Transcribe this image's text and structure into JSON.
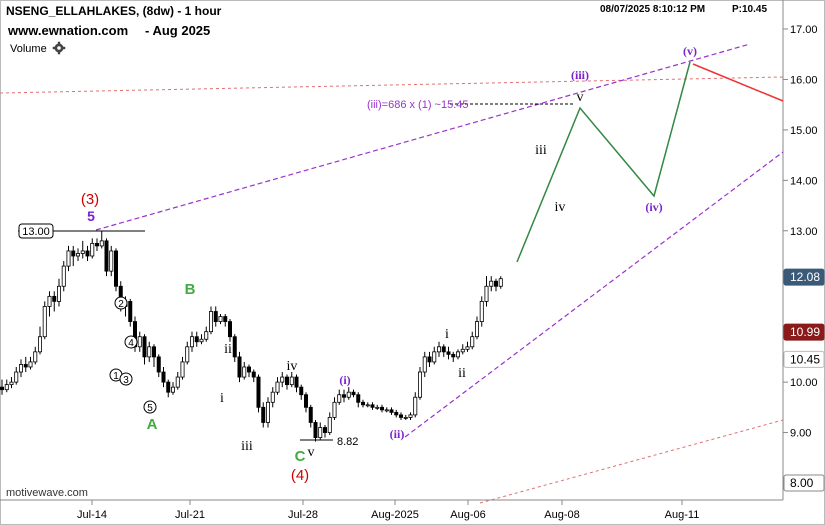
{
  "header": {
    "title": "NSENG_ELLAHLAKES, (8dw) - 1 hour",
    "website": "www.ewnation.com",
    "website_date": "- Aug 2025",
    "volume_label": "Volume",
    "gear_icon": "gear-icon",
    "timestamp": "08/07/2025 8:10:12 PM",
    "price_status": "P:10.45"
  },
  "watermark": "motivewave.com",
  "colors": {
    "candle": "#000000",
    "purple": "#9933cc",
    "red_label": "#d00000",
    "green_label": "#44aa44",
    "projection": "#338844",
    "red_line": "#ee3333",
    "dotted_red": "#e07070",
    "price_tag_blue": "#3a5a78",
    "price_tag_red": "#8b1a1a"
  },
  "chart_data": {
    "type": "candlestick",
    "x_tick_labels": [
      "Jul-14",
      "Jul-21",
      "Jul-28",
      "Aug-2025",
      "Aug-06",
      "Aug-08",
      "Aug-11"
    ],
    "y_ticks": [
      8.0,
      9.0,
      10.0,
      11.0,
      12.0,
      13.0,
      14.0,
      15.0,
      16.0,
      17.0
    ],
    "y_range": [
      7.9,
      17.5
    ],
    "price_tags": [
      {
        "value": 12.08,
        "label": "12.08",
        "style": "blue"
      },
      {
        "value": 10.99,
        "label": "10.99",
        "style": "red"
      },
      {
        "value": 10.45,
        "label": "10.45",
        "style": "plain"
      },
      {
        "value": 8.0,
        "label": "8.00",
        "style": "box"
      }
    ],
    "candles": [
      [
        9.9,
        9.85,
        10.05,
        9.75
      ],
      [
        9.85,
        9.95,
        10.05,
        9.8
      ],
      [
        9.95,
        10.0,
        10.1,
        9.88
      ],
      [
        10.0,
        10.2,
        10.3,
        9.95
      ],
      [
        10.2,
        10.35,
        10.45,
        10.1
      ],
      [
        10.35,
        10.3,
        10.5,
        10.2
      ],
      [
        10.3,
        10.4,
        10.5,
        10.25
      ],
      [
        10.4,
        10.6,
        10.7,
        10.35
      ],
      [
        10.6,
        10.9,
        11.1,
        10.55
      ],
      [
        10.9,
        11.5,
        11.6,
        10.85
      ],
      [
        11.5,
        11.7,
        11.8,
        11.3
      ],
      [
        11.7,
        11.6,
        11.8,
        11.4
      ],
      [
        11.6,
        11.9,
        12.05,
        11.5
      ],
      [
        11.9,
        12.3,
        12.4,
        11.8
      ],
      [
        12.3,
        12.6,
        12.7,
        12.2
      ],
      [
        12.6,
        12.5,
        12.7,
        12.3
      ],
      [
        12.5,
        12.55,
        12.65,
        12.4
      ],
      [
        12.55,
        12.6,
        12.8,
        12.45
      ],
      [
        12.6,
        12.5,
        12.7,
        12.4
      ],
      [
        12.5,
        12.75,
        12.85,
        12.45
      ],
      [
        12.75,
        12.7,
        12.85,
        12.6
      ],
      [
        12.7,
        12.8,
        13.0,
        12.65
      ],
      [
        12.8,
        12.2,
        12.85,
        12.1
      ],
      [
        12.2,
        12.6,
        12.7,
        12.1
      ],
      [
        12.6,
        11.9,
        12.65,
        11.8
      ],
      [
        11.9,
        11.5,
        12.0,
        11.4
      ],
      [
        11.5,
        11.6,
        11.7,
        11.3
      ],
      [
        11.6,
        11.2,
        11.65,
        11.1
      ],
      [
        11.2,
        10.7,
        11.3,
        10.6
      ],
      [
        10.7,
        10.9,
        11.0,
        10.6
      ],
      [
        10.9,
        10.5,
        10.95,
        10.35
      ],
      [
        10.5,
        10.7,
        10.8,
        10.4
      ],
      [
        10.7,
        10.5,
        10.75,
        10.3
      ],
      [
        10.5,
        10.2,
        10.55,
        10.1
      ],
      [
        10.2,
        10.0,
        10.3,
        9.9
      ],
      [
        10.0,
        9.8,
        10.05,
        9.7
      ],
      [
        9.8,
        9.9,
        10.0,
        9.75
      ],
      [
        9.9,
        10.1,
        10.2,
        9.85
      ],
      [
        10.1,
        10.4,
        10.5,
        10.05
      ],
      [
        10.4,
        10.7,
        10.8,
        10.35
      ],
      [
        10.7,
        10.9,
        11.0,
        10.6
      ],
      [
        10.9,
        10.8,
        11.0,
        10.7
      ],
      [
        10.8,
        10.85,
        10.95,
        10.75
      ],
      [
        10.85,
        11.0,
        11.1,
        10.8
      ],
      [
        11.0,
        11.4,
        11.5,
        10.95
      ],
      [
        11.4,
        11.2,
        11.5,
        11.1
      ],
      [
        11.2,
        11.3,
        11.35,
        11.15
      ],
      [
        11.3,
        11.2,
        11.35,
        11.1
      ],
      [
        11.2,
        10.9,
        11.25,
        10.8
      ],
      [
        10.9,
        10.5,
        10.95,
        10.4
      ],
      [
        10.5,
        10.1,
        10.6,
        10.0
      ],
      [
        10.1,
        10.3,
        10.4,
        10.05
      ],
      [
        10.3,
        10.2,
        10.35,
        10.1
      ],
      [
        10.2,
        10.1,
        10.25,
        10.0
      ],
      [
        10.1,
        9.5,
        10.15,
        9.4
      ],
      [
        9.5,
        9.2,
        9.6,
        9.1
      ],
      [
        9.2,
        9.6,
        9.7,
        9.1
      ],
      [
        9.6,
        9.8,
        9.9,
        9.5
      ],
      [
        9.8,
        10.0,
        10.1,
        9.75
      ],
      [
        10.0,
        10.1,
        10.2,
        9.9
      ],
      [
        10.1,
        9.95,
        10.15,
        9.85
      ],
      [
        9.95,
        10.1,
        10.2,
        9.9
      ],
      [
        10.1,
        9.9,
        10.15,
        9.8
      ],
      [
        9.9,
        9.75,
        9.95,
        9.65
      ],
      [
        9.75,
        9.5,
        9.8,
        9.4
      ],
      [
        9.5,
        9.2,
        9.55,
        9.1
      ],
      [
        9.2,
        8.9,
        9.25,
        8.82
      ],
      [
        8.9,
        9.1,
        9.2,
        8.85
      ],
      [
        9.1,
        9.0,
        9.15,
        8.9
      ],
      [
        9.0,
        9.3,
        9.4,
        8.95
      ],
      [
        9.3,
        9.6,
        9.7,
        9.25
      ],
      [
        9.6,
        9.75,
        9.85,
        9.55
      ],
      [
        9.75,
        9.7,
        9.85,
        9.6
      ],
      [
        9.7,
        9.8,
        9.9,
        9.65
      ],
      [
        9.8,
        9.75,
        9.85,
        9.7
      ],
      [
        9.75,
        9.6,
        9.8,
        9.5
      ],
      [
        9.6,
        9.55,
        9.65,
        9.5
      ],
      [
        9.55,
        9.55,
        9.6,
        9.5
      ],
      [
        9.55,
        9.5,
        9.6,
        9.45
      ],
      [
        9.5,
        9.5,
        9.55,
        9.45
      ],
      [
        9.5,
        9.45,
        9.55,
        9.4
      ],
      [
        9.45,
        9.45,
        9.5,
        9.4
      ],
      [
        9.45,
        9.4,
        9.5,
        9.35
      ],
      [
        9.4,
        9.35,
        9.45,
        9.3
      ],
      [
        9.35,
        9.3,
        9.4,
        9.25
      ],
      [
        9.3,
        9.3,
        9.35,
        9.25
      ],
      [
        9.3,
        9.35,
        9.4,
        9.25
      ],
      [
        9.35,
        9.7,
        9.8,
        9.3
      ],
      [
        9.7,
        10.2,
        10.3,
        9.65
      ],
      [
        10.2,
        10.5,
        10.6,
        10.1
      ],
      [
        10.5,
        10.4,
        10.6,
        10.3
      ],
      [
        10.4,
        10.6,
        10.7,
        10.35
      ],
      [
        10.6,
        10.7,
        10.8,
        10.5
      ],
      [
        10.7,
        10.6,
        10.75,
        10.5
      ],
      [
        10.6,
        10.55,
        10.7,
        10.45
      ],
      [
        10.55,
        10.5,
        10.6,
        10.4
      ],
      [
        10.5,
        10.6,
        10.65,
        10.45
      ],
      [
        10.6,
        10.65,
        10.75,
        10.55
      ],
      [
        10.65,
        10.7,
        10.8,
        10.6
      ],
      [
        10.7,
        10.9,
        11.0,
        10.65
      ],
      [
        10.9,
        11.2,
        11.3,
        10.85
      ],
      [
        11.2,
        11.6,
        11.7,
        11.1
      ],
      [
        11.6,
        11.9,
        12.1,
        11.5
      ],
      [
        11.9,
        12.0,
        12.1,
        11.8
      ],
      [
        12.0,
        11.9,
        12.05,
        11.8
      ],
      [
        11.9,
        12.05,
        12.1,
        11.85
      ]
    ],
    "candle_x_start": 2,
    "candle_x_step": 4.75,
    "annotations": [
      {
        "text": "13.00",
        "type": "price_box",
        "price": 13.0
      },
      {
        "text": "(3)",
        "color": "red",
        "wave": "3"
      },
      {
        "text": "5",
        "color": "purple",
        "wave": "5"
      },
      {
        "text": "2",
        "circled": true
      },
      {
        "text": "4",
        "circled": true
      },
      {
        "text": "1",
        "circled": true
      },
      {
        "text": "3",
        "circled": true
      },
      {
        "text": "5",
        "circled": true
      },
      {
        "text": "A",
        "color": "green"
      },
      {
        "text": "B",
        "color": "green"
      },
      {
        "text": "ii",
        "roman": true
      },
      {
        "text": "i",
        "roman": true
      },
      {
        "text": "iii",
        "roman": true
      },
      {
        "text": "iv",
        "roman": true
      },
      {
        "text": "C",
        "color": "green"
      },
      {
        "text": "v",
        "roman": true
      },
      {
        "text": "(4)",
        "color": "red"
      },
      {
        "text": "8.82",
        "type": "price_label",
        "price": 8.82
      },
      {
        "text": "(i)",
        "color": "purple"
      },
      {
        "text": "(ii)",
        "color": "purple"
      },
      {
        "text": "i",
        "roman": true
      },
      {
        "text": "ii",
        "roman": true
      },
      {
        "text": "iii",
        "roman": true
      },
      {
        "text": "iv",
        "roman": true
      },
      {
        "text": "v",
        "roman": true
      },
      {
        "text": "(iii)",
        "color": "purple"
      },
      {
        "text": "(iv)",
        "color": "purple"
      },
      {
        "text": "(v)",
        "color": "purple"
      },
      {
        "text": "(iii)=686 x (1) ~15.45",
        "color": "purple"
      }
    ],
    "projection_path": [
      {
        "label": "start",
        "price": 12.4
      },
      {
        "label": "iii",
        "price": 15.4
      },
      {
        "label": "iv",
        "price": 13.7
      },
      {
        "label": "v",
        "price": 16.3
      }
    ]
  }
}
